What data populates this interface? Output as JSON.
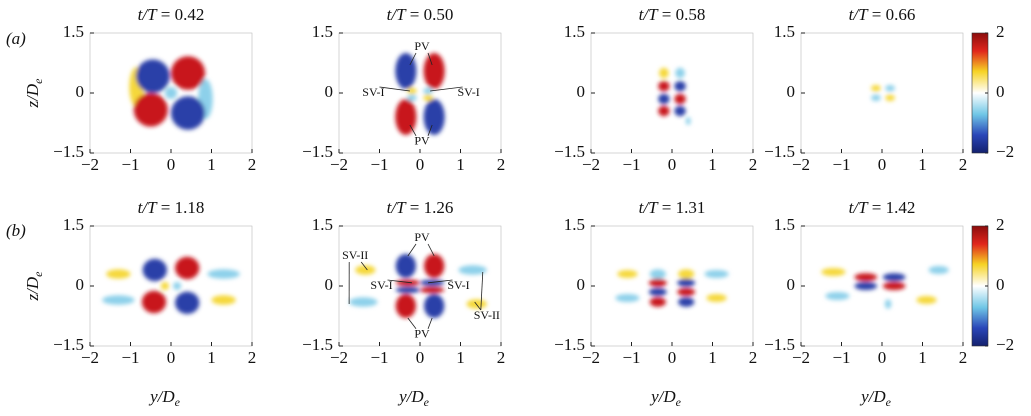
{
  "panel_labels": [
    "(a)",
    "(b)"
  ],
  "chart_data": [
    {
      "type": "heatmap",
      "title": "t/T = 0.42",
      "ylabel": "z/De",
      "xlim": [
        -2,
        2
      ],
      "ylim": [
        -1.5,
        1.5
      ],
      "xticks": [
        {
          "value": -2,
          "label": "−2"
        },
        {
          "value": -1,
          "label": "−1"
        },
        0,
        1,
        2
      ],
      "yticks": [
        {
          "value": -1.5,
          "label": "−1.5"
        },
        0,
        1.5
      ]
    },
    {
      "type": "heatmap",
      "title": "t/T = 0.50",
      "xlim": [
        -2,
        2
      ],
      "ylim": [
        -1.5,
        1.5
      ],
      "xticks": [
        {
          "value": -2,
          "label": "−2"
        },
        {
          "value": -1,
          "label": "−1"
        },
        0,
        1,
        2
      ],
      "yticks": [
        {
          "value": -1.5,
          "label": "−1.5"
        },
        0,
        1.5
      ],
      "annotations": [
        "PV",
        "PV",
        "SV-I",
        "SV-I"
      ]
    },
    {
      "type": "heatmap",
      "title": "t/T = 0.58",
      "xlim": [
        -2,
        2
      ],
      "ylim": [
        -1.5,
        1.5
      ],
      "xticks": [
        {
          "value": -2,
          "label": "−2"
        },
        {
          "value": -1,
          "label": "−1"
        },
        0,
        1,
        2
      ],
      "yticks": [
        {
          "value": -1.5,
          "label": "−1.5"
        },
        0,
        1.5
      ]
    },
    {
      "type": "heatmap",
      "title": "t/T = 0.66",
      "xlim": [
        -2,
        2
      ],
      "ylim": [
        -1.5,
        1.5
      ],
      "xticks": [
        {
          "value": -2,
          "label": "−2"
        },
        {
          "value": -1,
          "label": "−1"
        },
        0,
        1,
        2
      ],
      "yticks": [
        {
          "value": -1.5,
          "label": "−1.5"
        },
        0,
        1.5
      ],
      "colorbar": {
        "lim": [
          -2,
          2
        ],
        "ticks": [
          {
            "value": -2,
            "label": "−2"
          },
          0,
          2
        ]
      }
    },
    {
      "type": "heatmap",
      "title": "t/T = 1.18",
      "ylabel": "z/De",
      "xlabel": "y/De",
      "xlim": [
        -2,
        2
      ],
      "ylim": [
        -1.5,
        1.5
      ],
      "xticks": [
        {
          "value": -2,
          "label": "−2"
        },
        {
          "value": -1,
          "label": "−1"
        },
        0,
        1,
        2
      ],
      "yticks": [
        {
          "value": -1.5,
          "label": "−1.5"
        },
        0,
        1.5
      ]
    },
    {
      "type": "heatmap",
      "title": "t/T = 1.26",
      "xlabel": "y/De",
      "xlim": [
        -2,
        2
      ],
      "ylim": [
        -1.5,
        1.5
      ],
      "xticks": [
        {
          "value": -2,
          "label": "−2"
        },
        {
          "value": -1,
          "label": "−1"
        },
        0,
        1,
        2
      ],
      "yticks": [
        {
          "value": -1.5,
          "label": "−1.5"
        },
        0,
        1.5
      ],
      "annotations": [
        "PV",
        "PV",
        "SV-I",
        "SV-I",
        "SV-II",
        "SV-II"
      ]
    },
    {
      "type": "heatmap",
      "title": "t/T = 1.31",
      "xlabel": "y/De",
      "xlim": [
        -2,
        2
      ],
      "ylim": [
        -1.5,
        1.5
      ],
      "xticks": [
        {
          "value": -2,
          "label": "−2"
        },
        {
          "value": -1,
          "label": "−1"
        },
        0,
        1,
        2
      ],
      "yticks": [
        {
          "value": -1.5,
          "label": "−1.5"
        },
        0,
        1.5
      ]
    },
    {
      "type": "heatmap",
      "title": "t/T = 1.42",
      "xlabel": "y/De",
      "xlim": [
        -2,
        2
      ],
      "ylim": [
        -1.5,
        1.5
      ],
      "xticks": [
        {
          "value": -2,
          "label": "−2"
        },
        {
          "value": -1,
          "label": "−1"
        },
        0,
        1,
        2
      ],
      "yticks": [
        {
          "value": -1.5,
          "label": "−1.5"
        },
        0,
        1.5
      ],
      "colorbar": {
        "lim": [
          -2,
          2
        ],
        "ticks": [
          {
            "value": -2,
            "label": "−2"
          },
          0,
          2
        ]
      }
    }
  ]
}
